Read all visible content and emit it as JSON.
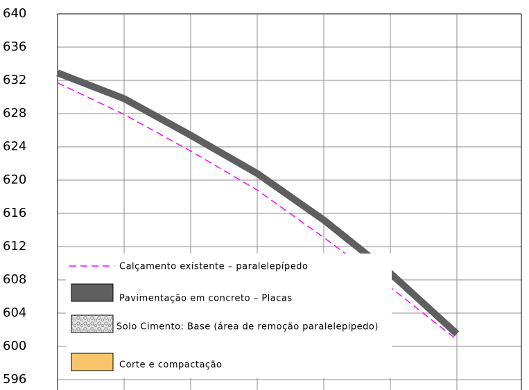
{
  "chart_data": {
    "type": "line",
    "categories": [
      null,
      null,
      null,
      null,
      null,
      null,
      null
    ],
    "series": [
      {
        "name": "Calçamento existente – paralelepípedo",
        "color": "#ff00ff",
        "dashed": true,
        "values": [
          631.7,
          627.9,
          623.5,
          618.8,
          613.1,
          607.1,
          600.8
        ]
      },
      {
        "name": "Pavimentação em concreto – Placas",
        "color": "#5f5f5f",
        "dashed": false,
        "values": [
          632.9,
          629.8,
          625.4,
          620.8,
          615.2,
          608.8,
          601.5
        ]
      }
    ],
    "legend_items": [
      {
        "name": "Solo Cimento: Base (área de remoção paralelepipedo)",
        "color": "#d8d8d8",
        "pattern": "gravel"
      },
      {
        "name": "Corte e compactação",
        "color": "#f8c66a",
        "pattern": "solid"
      }
    ],
    "ylim": [
      596,
      640
    ],
    "yticks": [
      596,
      600,
      604,
      608,
      612,
      616,
      620,
      624,
      628,
      632,
      636,
      640
    ],
    "grid": true
  }
}
